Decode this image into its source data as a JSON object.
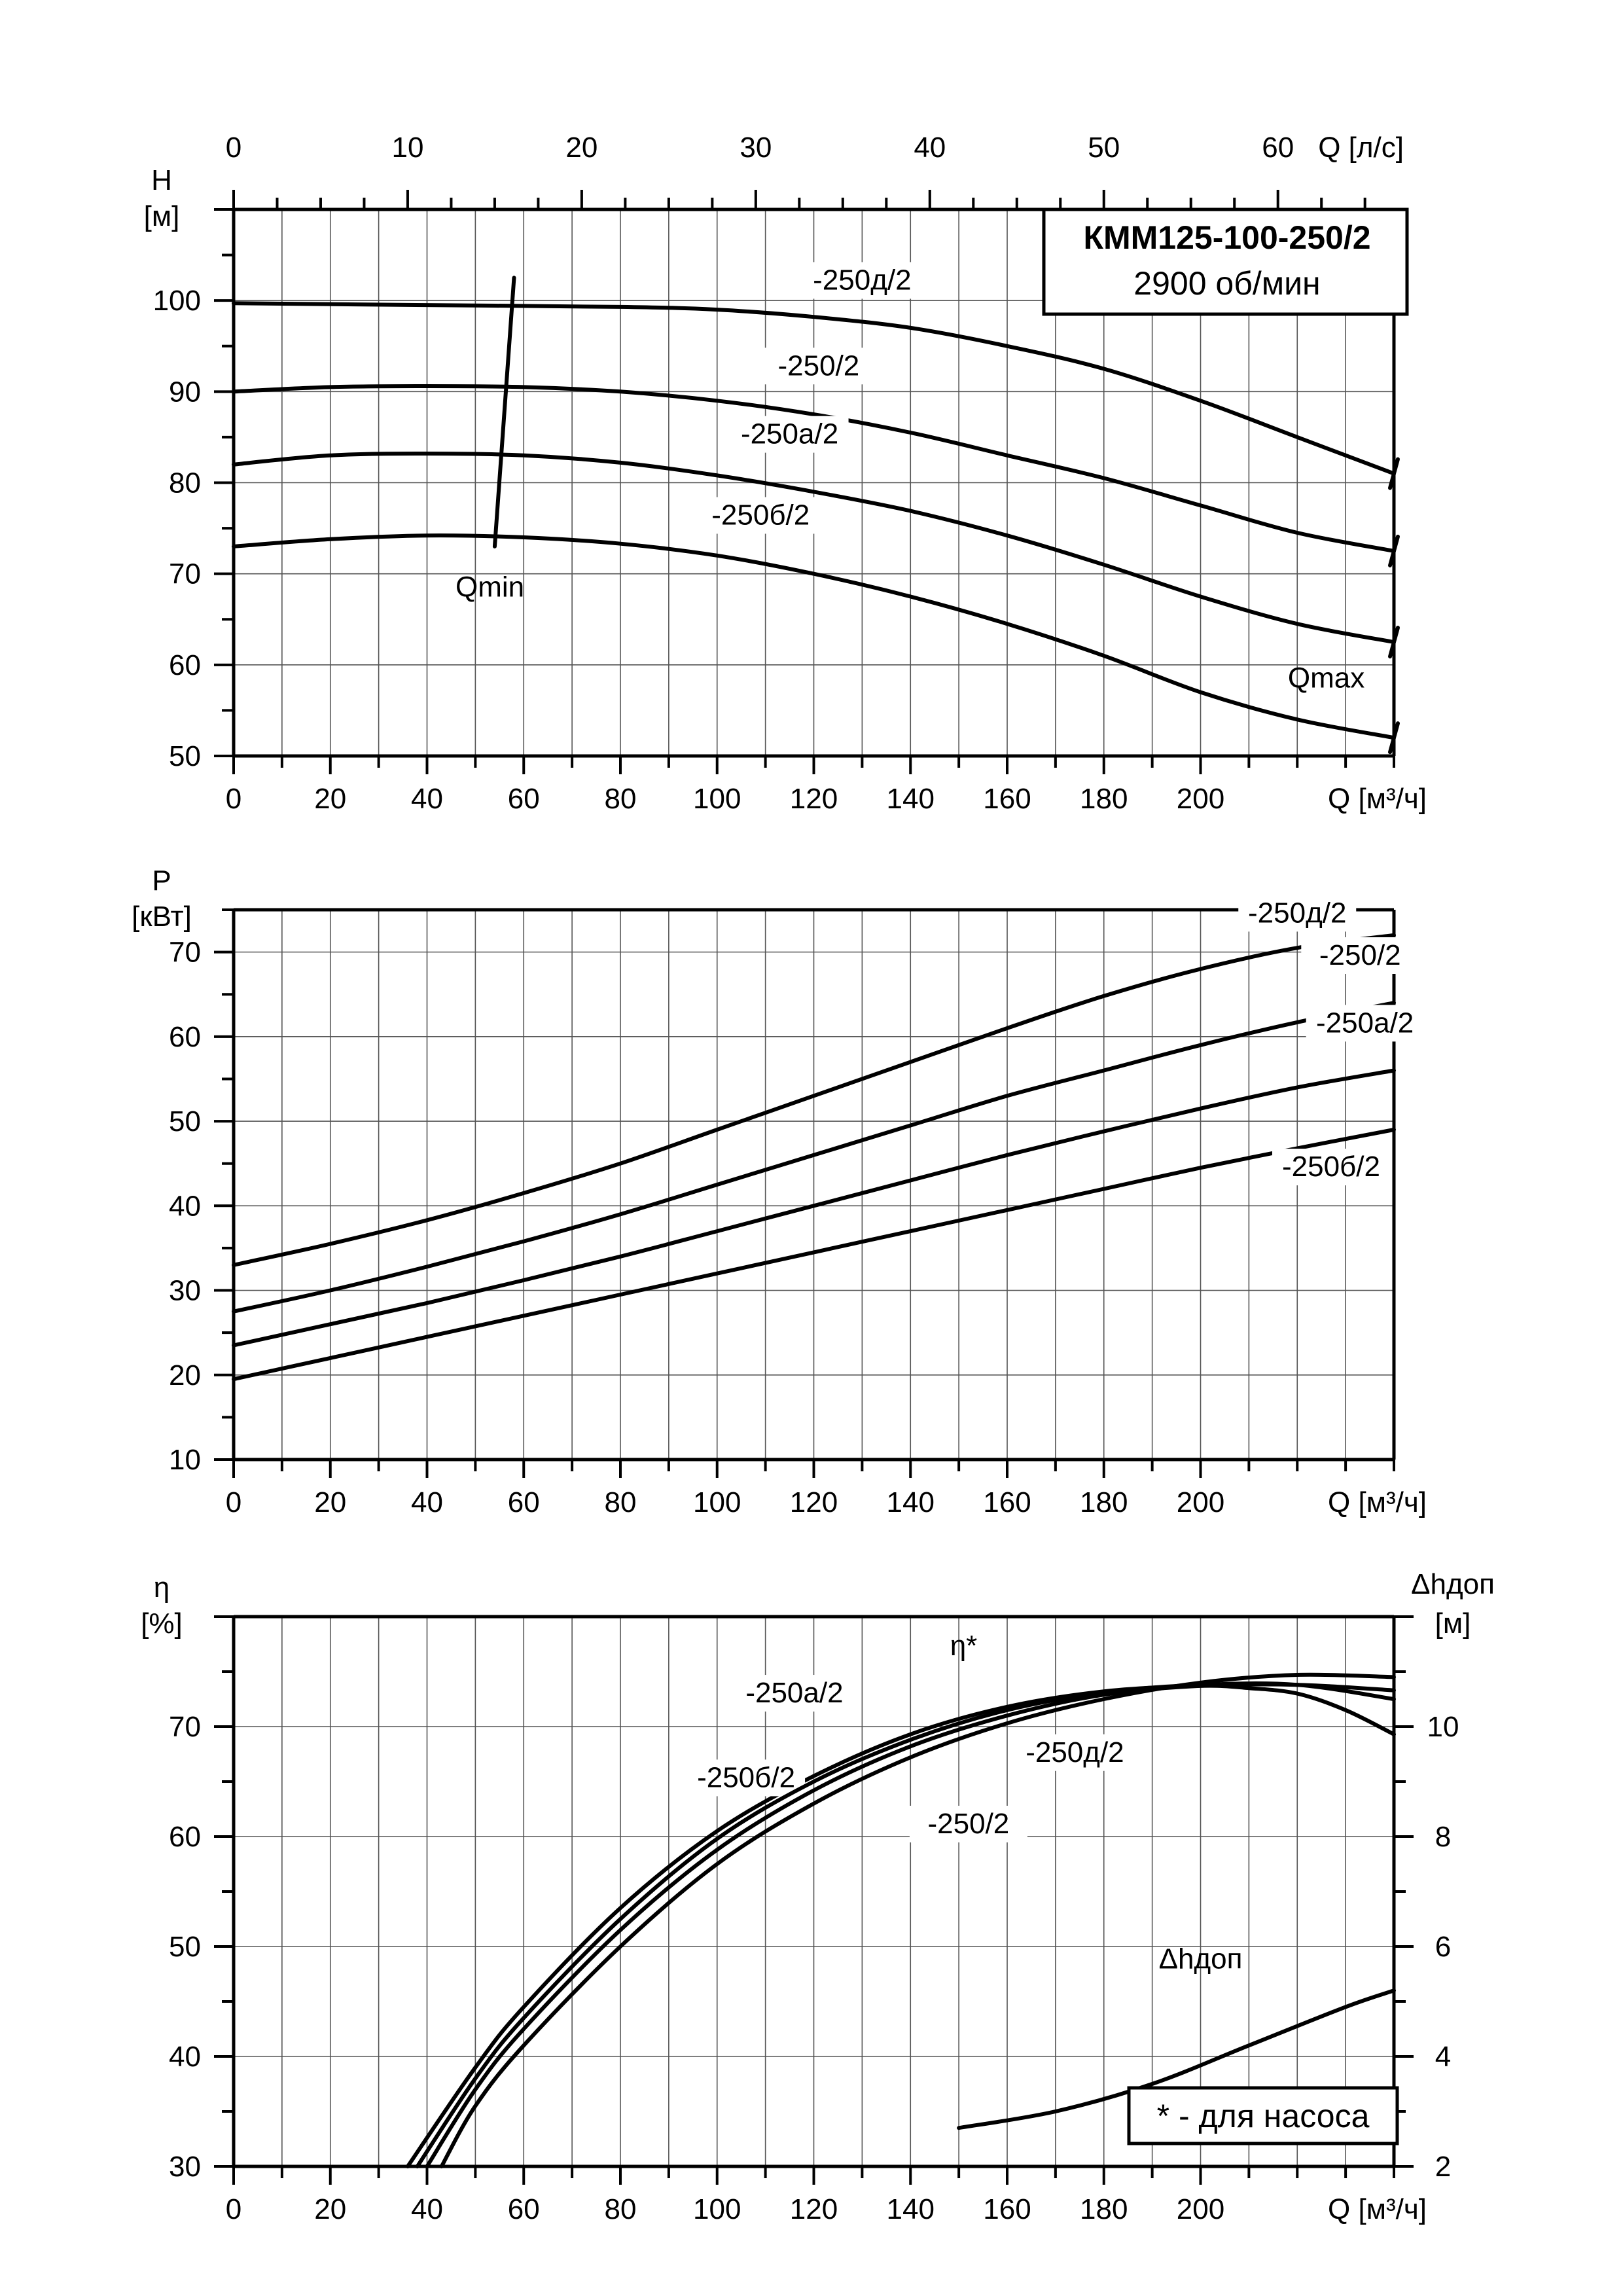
{
  "title_box": {
    "model": "КММ125-100-250/2",
    "speed": "2900 об/мин"
  },
  "note": "* - для насоса",
  "chart_data": [
    {
      "type": "line",
      "ylabel": [
        "H",
        "[м]"
      ],
      "xlabel": "Q [м³/ч]",
      "x2label": "Q [л/с]",
      "xlim": [
        0,
        240
      ],
      "ylim": [
        50,
        110
      ],
      "x_ticks": [
        0,
        20,
        40,
        60,
        80,
        100,
        120,
        140,
        160,
        180,
        200
      ],
      "x2_ticks": [
        0,
        10,
        20,
        30,
        40,
        50,
        60
      ],
      "y_ticks": [
        50,
        60,
        70,
        80,
        90,
        100
      ],
      "series": [
        {
          "name": "-250д/2",
          "x": [
            0,
            40,
            80,
            100,
            120,
            140,
            160,
            180,
            200,
            220,
            240
          ],
          "y": [
            99.7,
            99.5,
            99.3,
            99,
            98.2,
            97,
            95,
            92.5,
            89,
            85,
            81
          ]
        },
        {
          "name": "-250/2",
          "x": [
            0,
            20,
            40,
            60,
            80,
            100,
            120,
            140,
            160,
            180,
            200,
            220,
            240
          ],
          "y": [
            90,
            90.5,
            90.6,
            90.5,
            90,
            89,
            87.5,
            85.5,
            83,
            80.5,
            77.5,
            74.5,
            72.5
          ]
        },
        {
          "name": "-250а/2",
          "x": [
            0,
            20,
            40,
            60,
            80,
            100,
            120,
            140,
            160,
            180,
            200,
            220,
            240
          ],
          "y": [
            82,
            83,
            83.2,
            83,
            82.2,
            80.8,
            79,
            76.9,
            74.2,
            71,
            67.5,
            64.5,
            62.5
          ]
        },
        {
          "name": "-250б/2",
          "x": [
            0,
            20,
            40,
            60,
            80,
            100,
            120,
            140,
            160,
            180,
            200,
            220,
            240
          ],
          "y": [
            73,
            73.8,
            74.2,
            74,
            73.3,
            72,
            70,
            67.5,
            64.5,
            61,
            57,
            54,
            52
          ]
        }
      ],
      "annotations": [
        "Qmin",
        "Qmax"
      ],
      "qmin_line": {
        "x": [
          54,
          58
        ],
        "y": [
          73,
          102.5
        ]
      }
    },
    {
      "type": "line",
      "ylabel": [
        "P",
        "[кВт]"
      ],
      "xlabel": "Q [м³/ч]",
      "xlim": [
        0,
        240
      ],
      "ylim": [
        10,
        75
      ],
      "x_ticks": [
        0,
        20,
        40,
        60,
        80,
        100,
        120,
        140,
        160,
        180,
        200
      ],
      "y_ticks": [
        10,
        20,
        30,
        40,
        50,
        60,
        70
      ],
      "series": [
        {
          "name": "-250д/2",
          "x": [
            0,
            20,
            40,
            60,
            80,
            100,
            120,
            140,
            160,
            180,
            200,
            220,
            240
          ],
          "y": [
            33,
            35.5,
            38.3,
            41.5,
            45,
            49,
            53,
            57,
            61,
            64.8,
            68,
            70.5,
            72
          ]
        },
        {
          "name": "-250/2",
          "x": [
            0,
            20,
            40,
            60,
            80,
            100,
            120,
            140,
            160,
            180,
            200,
            220,
            240
          ],
          "y": [
            27.5,
            30,
            32.8,
            35.8,
            39,
            42.5,
            46,
            49.5,
            53,
            56,
            59,
            61.7,
            64
          ]
        },
        {
          "name": "-250а/2",
          "x": [
            0,
            20,
            40,
            60,
            80,
            100,
            120,
            140,
            160,
            180,
            200,
            220,
            240
          ],
          "y": [
            23.5,
            26,
            28.5,
            31.2,
            34,
            37,
            40,
            43,
            46,
            48.8,
            51.5,
            54,
            56
          ]
        },
        {
          "name": "-250б/2",
          "x": [
            0,
            20,
            40,
            60,
            80,
            100,
            120,
            140,
            160,
            180,
            200,
            220,
            240
          ],
          "y": [
            19.5,
            22,
            24.5,
            27,
            29.5,
            32,
            34.5,
            37,
            39.5,
            42,
            44.5,
            46.8,
            49
          ]
        }
      ]
    },
    {
      "type": "line",
      "ylabel": [
        "η",
        "[%]"
      ],
      "y2label": [
        "Δhдоп",
        "[м]"
      ],
      "xlabel": "Q [м³/ч]",
      "xlim": [
        0,
        240
      ],
      "ylim": [
        30,
        80
      ],
      "y2lim": [
        2,
        12
      ],
      "x_ticks": [
        0,
        20,
        40,
        60,
        80,
        100,
        120,
        140,
        160,
        180,
        200
      ],
      "y_ticks": [
        30,
        40,
        50,
        60,
        70
      ],
      "y2_ticks": [
        2,
        4,
        6,
        8,
        10
      ],
      "eta_label": "η*",
      "npsh_label": "Δhдоп",
      "series": [
        {
          "name": "-250б/2",
          "x": [
            36,
            50,
            60,
            80,
            100,
            120,
            140,
            160,
            180,
            200,
            210,
            220,
            230,
            240
          ],
          "y": [
            30,
            39,
            44.5,
            53.5,
            60.5,
            65.5,
            69.3,
            71.8,
            73.2,
            73.7,
            73.5,
            73,
            71.5,
            69.3
          ]
        },
        {
          "name": "-250а/2",
          "x": [
            38,
            50,
            60,
            80,
            100,
            120,
            140,
            160,
            180,
            200,
            220,
            240
          ],
          "y": [
            30,
            38,
            43.5,
            52.5,
            59.8,
            65,
            68.8,
            71.5,
            73.1,
            73.8,
            73.8,
            72.5
          ]
        },
        {
          "name": "-250/2",
          "x": [
            40,
            50,
            60,
            80,
            100,
            120,
            140,
            160,
            180,
            200,
            220,
            240
          ],
          "y": [
            30,
            37,
            42.5,
            51.5,
            58.8,
            64.2,
            68.2,
            71,
            72.9,
            73.7,
            73.8,
            73.3
          ]
        },
        {
          "name": "-250д/2",
          "x": [
            43,
            50,
            60,
            80,
            100,
            120,
            140,
            160,
            180,
            200,
            220,
            240
          ],
          "y": [
            30,
            35.5,
            41,
            50,
            57.5,
            63,
            67.2,
            70.3,
            72.5,
            74,
            74.7,
            74.5
          ]
        },
        {
          "name": "Δhдоп",
          "axis": "y2",
          "x": [
            150,
            170,
            190,
            210,
            230,
            240
          ],
          "y": [
            2.7,
            3,
            3.5,
            4.2,
            4.9,
            5.2
          ]
        }
      ]
    }
  ]
}
